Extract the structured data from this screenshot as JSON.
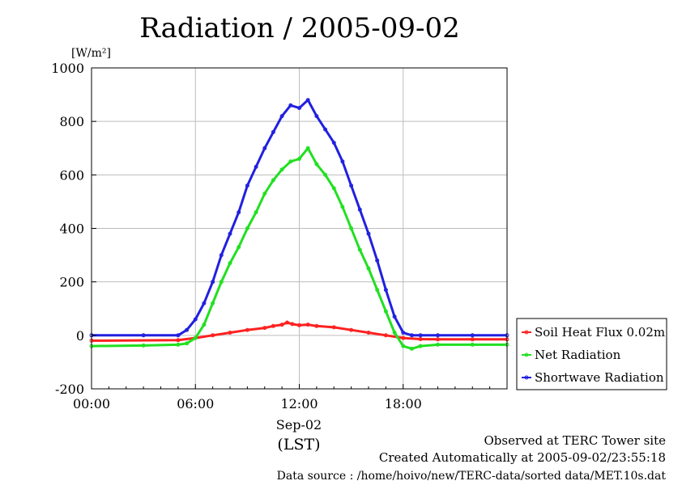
{
  "chart_data": {
    "type": "line",
    "title": "Radiation / 2005-09-02",
    "ylabel_unit": "[W/m²]",
    "ylim": [
      -200,
      1000
    ],
    "yticks": [
      -200,
      0,
      200,
      400,
      600,
      800,
      1000
    ],
    "xlim": [
      0,
      24
    ],
    "xticks": [
      {
        "value": 0,
        "label": "00:00"
      },
      {
        "value": 6,
        "label": "06:00"
      },
      {
        "value": 12,
        "label": "12:00"
      },
      {
        "value": 18,
        "label": "18:00"
      }
    ],
    "xlabel_date": "Sep-02",
    "xlabel_zone": "(LST)",
    "grid": true,
    "legend_position": "right",
    "series": [
      {
        "name": "Soil Heat Flux 0.02m",
        "color": "#ff2020",
        "x": [
          0,
          5,
          6,
          7,
          8,
          9,
          10,
          10.5,
          11,
          11.3,
          11.6,
          12,
          12.5,
          13,
          14,
          15,
          16,
          17,
          18,
          19,
          20,
          22,
          24
        ],
        "y": [
          -20,
          -18,
          -10,
          0,
          10,
          20,
          28,
          35,
          40,
          48,
          42,
          38,
          40,
          35,
          30,
          20,
          10,
          0,
          -10,
          -14,
          -15,
          -15,
          -15
        ]
      },
      {
        "name": "Net Radiation",
        "color": "#20e020",
        "x": [
          0,
          3,
          5,
          5.5,
          6,
          6.5,
          7,
          7.5,
          8,
          8.5,
          9,
          9.5,
          10,
          10.5,
          11,
          11.5,
          12,
          12.5,
          13,
          13.5,
          14,
          14.5,
          15,
          15.5,
          16,
          16.5,
          17,
          17.5,
          18,
          18.5,
          19,
          20,
          22,
          24
        ],
        "y": [
          -40,
          -38,
          -35,
          -30,
          -10,
          40,
          120,
          200,
          270,
          330,
          400,
          460,
          530,
          580,
          620,
          650,
          660,
          700,
          640,
          600,
          550,
          480,
          400,
          320,
          250,
          170,
          90,
          10,
          -40,
          -50,
          -40,
          -35,
          -35,
          -35
        ]
      },
      {
        "name": "Shortwave Radiation",
        "color": "#2020e0",
        "x": [
          0,
          3,
          5,
          5.5,
          6,
          6.5,
          7,
          7.5,
          8,
          8.5,
          9,
          9.5,
          10,
          10.5,
          11,
          11.5,
          12,
          12.5,
          13,
          13.5,
          14,
          14.5,
          15,
          15.5,
          16,
          16.5,
          17,
          17.5,
          18,
          18.5,
          19,
          20,
          22,
          24
        ],
        "y": [
          0,
          0,
          0,
          20,
          60,
          120,
          200,
          300,
          380,
          460,
          560,
          630,
          700,
          760,
          820,
          860,
          850,
          880,
          820,
          770,
          720,
          650,
          560,
          470,
          380,
          280,
          170,
          70,
          10,
          0,
          0,
          0,
          0,
          0
        ]
      }
    ]
  },
  "footer": {
    "observed": "Observed at TERC Tower site",
    "created": "Created Automatically at 2005-09-02/23:55:18",
    "source": "Data source : /home/hoivo/new/TERC-data/sorted  data/MET.10s.dat"
  }
}
